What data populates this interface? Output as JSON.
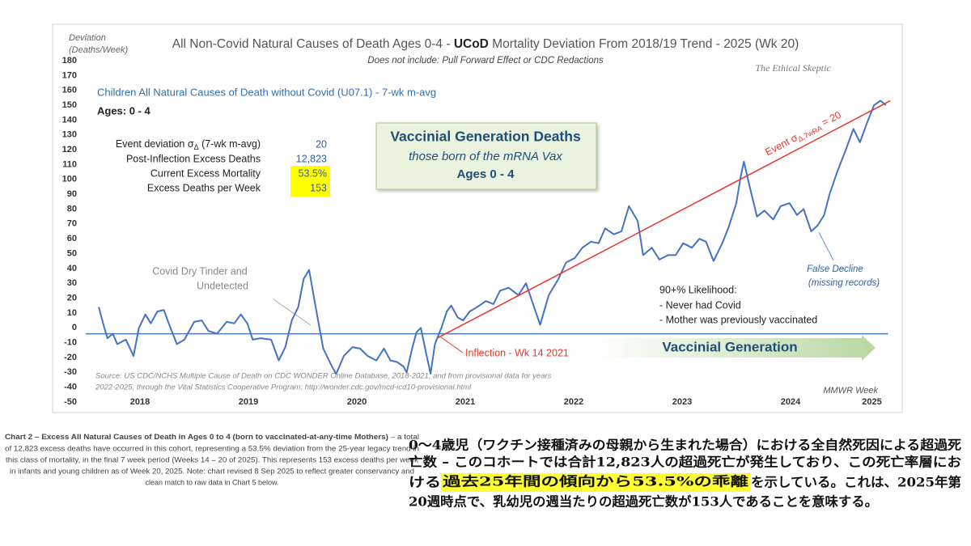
{
  "chart_data": {
    "type": "line",
    "title_parts": [
      "All Non-Covid Natural Causes of Death Ages 0-4 - ",
      "UCoD",
      " Mortality Deviation From 2018/19 Trend - 2025 (Wk 20)"
    ],
    "subtitle": "Does not include: Pull Forward Effect or CDC Redactions",
    "y_label": [
      "Deviation",
      "(Deaths/Week)"
    ],
    "x_label": "MMWR Week",
    "watermark": "The Ethical Skeptic",
    "ages": "Ages: 0 - 4",
    "x": [
      2018.12,
      2018.16,
      2018.2,
      2018.25,
      2018.29,
      2018.37,
      2018.44,
      2018.49,
      2018.55,
      2018.6,
      2018.66,
      2018.72,
      2018.76,
      2018.84,
      2018.91,
      2019.0,
      2019.07,
      2019.13,
      2019.21,
      2019.3,
      2019.37,
      2019.43,
      2019.49,
      2019.54,
      2019.61,
      2019.71,
      2019.78,
      2019.84,
      2019.9,
      2019.96,
      2020.01,
      2020.06,
      2020.12,
      2020.19,
      2020.27,
      2020.31,
      2020.38,
      2020.46,
      2020.53,
      2020.6,
      2020.68,
      2020.75,
      2020.81,
      2020.87,
      2020.93,
      2020.96,
      2021.01,
      2021.05,
      2021.09,
      2021.13,
      2021.18,
      2021.22,
      2021.28,
      2021.33,
      2021.37,
      2021.43,
      2021.48,
      2021.54,
      2021.61,
      2021.69,
      2021.76,
      2021.82,
      2021.9,
      2021.99,
      2022.06,
      2022.13,
      2022.19,
      2022.27,
      2022.36,
      2022.43,
      2022.51,
      2022.58,
      2022.66,
      2022.73,
      2022.79,
      2022.87,
      2022.94,
      2023.01,
      2023.09,
      2023.14,
      2023.22,
      2023.29,
      2023.37,
      2023.44,
      2023.51,
      2023.59,
      2023.66,
      2023.72,
      2023.79,
      2023.87,
      2023.93,
      2024.0,
      2024.04,
      2024.07,
      2024.13,
      2024.19,
      2024.26,
      2024.34,
      2024.41,
      2024.49,
      2024.56,
      2024.62,
      2024.69,
      2024.75,
      2024.81,
      2024.86,
      2024.93,
      2025.01,
      2025.08,
      2025.14,
      2025.21,
      2025.27,
      2025.33,
      2025.38
    ],
    "series": [
      {
        "name": "Children All Natural Causes of Death without Covid (U07.1) - 7-wk m-avg",
        "color": "#4472c4",
        "values": [
          14,
          3,
          -7,
          -4,
          -11,
          -8,
          -19,
          0,
          9,
          3,
          11,
          12,
          4,
          -11,
          -8,
          4,
          5,
          -2,
          -4,
          4,
          3,
          9,
          3,
          -8,
          -7,
          -8,
          -22,
          -13,
          5,
          14,
          33,
          39,
          14,
          -14,
          -26,
          -31,
          -19,
          -13,
          -14,
          -19,
          -22,
          -14,
          -22,
          -23,
          -26,
          -30,
          -14,
          -3,
          0,
          -14,
          -31,
          -11,
          0,
          11,
          15,
          7,
          5,
          11,
          14,
          18,
          16,
          25,
          27,
          22,
          30,
          15,
          2,
          22,
          33,
          44,
          47,
          54,
          58,
          57,
          67,
          63,
          65,
          82,
          72,
          49,
          54,
          46,
          49,
          49,
          57,
          54,
          60,
          58,
          45,
          57,
          68,
          84,
          102,
          112,
          93,
          75,
          79,
          73,
          82,
          84,
          76,
          80,
          65,
          69,
          76,
          90,
          105,
          120,
          134,
          125,
          139,
          150,
          153,
          150
        ]
      }
    ],
    "trend": {
      "x": [
        2021.24,
        2025.42
      ],
      "values": [
        -7,
        153
      ],
      "color": "#e8352b",
      "label": "Event σ",
      "label_sub": "Δ,7wRA",
      "label_end": " =  20"
    },
    "reference_line": {
      "value": -4,
      "color": "#4a7ebb"
    },
    "xlim": [
      2018,
      2025.4
    ],
    "ylim": [
      -50,
      180
    ],
    "xticks": [
      {
        "value": 2018.5,
        "label": "2018"
      },
      {
        "value": 2019.5,
        "label": "2019"
      },
      {
        "value": 2020.5,
        "label": "2020"
      },
      {
        "value": 2021.5,
        "label": "2021"
      },
      {
        "value": 2022.5,
        "label": "2022"
      },
      {
        "value": 2023.5,
        "label": "2023"
      },
      {
        "value": 2024.5,
        "label": "2024"
      },
      {
        "value": 2025.25,
        "label": "2025"
      }
    ],
    "yticks": [
      -50,
      -40,
      -30,
      -20,
      -10,
      0,
      10,
      20,
      30,
      40,
      50,
      60,
      70,
      80,
      90,
      100,
      110,
      120,
      130,
      140,
      150,
      160,
      170,
      180
    ],
    "grid": false,
    "stats": [
      {
        "label": "Event deviation σ",
        "label_sub": "Δ",
        "label_end": " (7-wk m-avg)",
        "value": "20"
      },
      {
        "label": "Post-Inflection Excess Deaths",
        "value": "12,823"
      },
      {
        "label": "Current Excess Mortality",
        "value": "53.5%"
      },
      {
        "label": "Excess Deaths per Week",
        "value": "153"
      }
    ],
    "box": [
      "Vaccinial Generation Deaths",
      "those born of the mRNA Vax",
      "Ages 0 - 4"
    ],
    "arrow_label": "Vaccinial Generation",
    "notes": {
      "tinder": [
        "Covid Dry Tinder and",
        "Undetected"
      ],
      "inflection": "Inflection - Wk 14 2021",
      "false_decline": [
        "False Decline",
        "(missing records)"
      ],
      "likelihood": [
        "90+% Likelihood:",
        "- Never had Covid",
        "- Mother was previously vaccinated"
      ],
      "source": [
        "Source: US CDC/NCHS Multiple Cause of Death on CDC WONDER Online Database, 2018-2021, and from provisional data for years",
        "2022-2025, through the Vital Statistics Cooperative Program; http://wonder.cdc.gov/mcd-icd10-provisional.html"
      ]
    }
  },
  "caption_en": {
    "bold": "Chart 2 – Excess All Natural Causes of Death in Ages 0 to 4 (born to vaccinated-at-any-time Mothers)",
    "lines": [
      " – a total",
      "of 12,823 excess deaths have occurred in this cohort, representing a 53.5% deviation from the 25-year legacy trend in",
      "this class of mortality, in the final 7 week period (Weeks 14 – 20 of 2025). This represents 153 excess deaths per week",
      "in infants and young children as of Week 20, 2025. Note: chart revised 8 Sep 2025 to reflect greater conservancy and",
      "clean match to raw data in Chart 5 below."
    ]
  },
  "caption_ja": {
    "lines": [
      "0～4歳児（ワクチン接種済みの母親から生まれた場合）における全自然死因による超過死",
      "亡数 – このコホートでは合計12,823人の超過死亡が発生しており、この死亡率層にお"
    ],
    "line3_start": "ける",
    "highlight": "過去25年間の傾向から53.5%の乖離",
    "line3_end": "を示している。これは、2025年第",
    "line4": "20週時点で、乳幼児の週当たりの超過死亡数が153人であることを意味する。"
  }
}
